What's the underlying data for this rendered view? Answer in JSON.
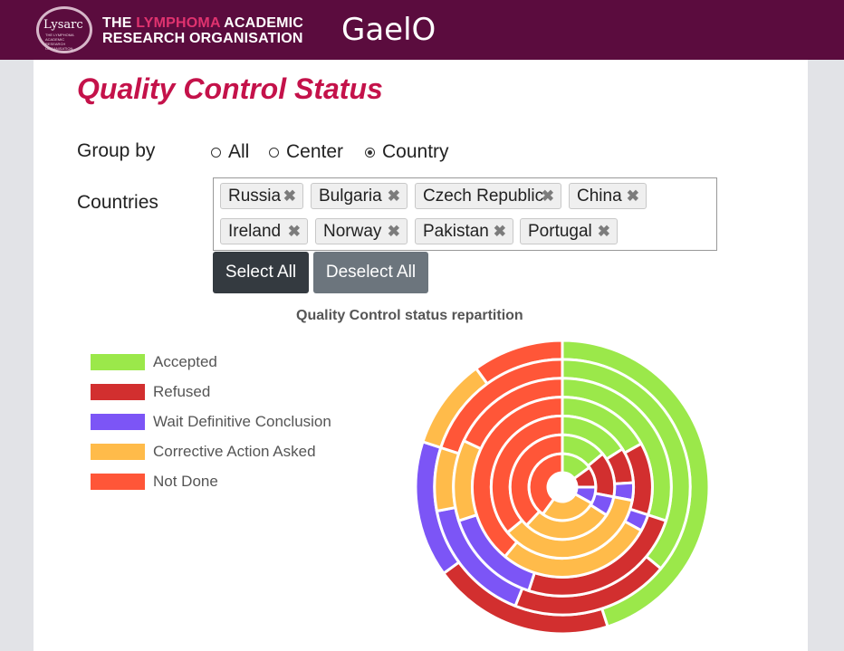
{
  "header": {
    "logo_text": "Lysarc",
    "logo_subtext": "THE LYMPHOMA ACADEMIC RESEARCH ORGANISATION",
    "org_line1_prefix": "THE ",
    "org_line1_highlight": "LYMPHOMA",
    "org_line1_suffix": " ACADEMIC",
    "org_line2": "RESEARCH ORGANISATION",
    "brand": "GaelO"
  },
  "page": {
    "title": "Quality Control Status"
  },
  "group_by": {
    "label": "Group by",
    "options": [
      {
        "label": "All",
        "checked": false
      },
      {
        "label": "Center",
        "checked": false
      },
      {
        "label": "Country",
        "checked": true
      }
    ]
  },
  "countries": {
    "label": "Countries",
    "tags": [
      "Russia",
      "Bulgaria",
      "Czech Republic",
      "China",
      "Ireland",
      "Norway",
      "Pakistan",
      "Portugal"
    ],
    "remove_glyph": "✖"
  },
  "buttons": {
    "select_all": "Select All",
    "deselect_all": "Deselect All"
  },
  "chart_data": {
    "type": "pie",
    "subtype": "multi-ring-donut",
    "title": "Quality Control status repartition",
    "legend_position": "left",
    "categories": [
      "Accepted",
      "Refused",
      "Wait Definitive Conclusion",
      "Corrective Action Asked",
      "Not Done"
    ],
    "colors": [
      "#9be84a",
      "#d22f2f",
      "#7c55f6",
      "#ffbb4a",
      "#ff5638"
    ],
    "series": [
      {
        "values": [
          45,
          20,
          15,
          10,
          10
        ]
      },
      {
        "values": [
          36,
          20,
          16,
          8,
          20
        ]
      },
      {
        "values": [
          30,
          25,
          15,
          12,
          18
        ]
      },
      {
        "values": [
          17,
          13,
          3,
          28,
          39
        ]
      },
      {
        "values": [
          16,
          8,
          4,
          36,
          36
        ]
      },
      {
        "values": [
          14,
          14,
          6,
          28,
          38
        ]
      },
      {
        "values": [
          15,
          10,
          8,
          27,
          40
        ]
      }
    ]
  }
}
